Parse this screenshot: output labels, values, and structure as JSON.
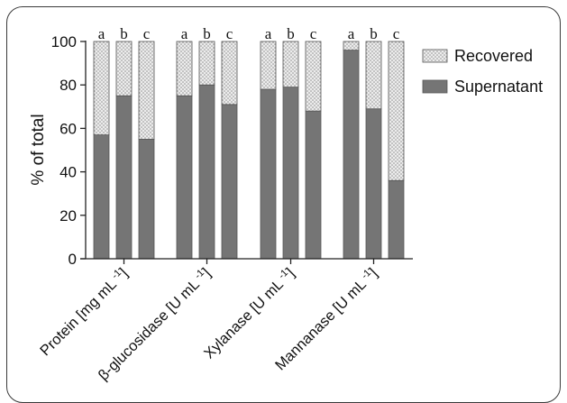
{
  "chart_data": {
    "type": "bar",
    "stacked": true,
    "categories": [
      "Protein [mg mL -1]",
      "β-glucosidase [U mL -1]",
      "Xylanase [U mL -1]",
      "Mannanase [U mL -1]"
    ],
    "category_labels": [
      {
        "main": "Protein [mg mL",
        "sup": "-1",
        "tail": "]"
      },
      {
        "main": "β-glucosidase [U mL",
        "sup": "-1",
        "tail": "]"
      },
      {
        "main": "Xylanase [U mL",
        "sup": "-1",
        "tail": "]"
      },
      {
        "main": "Mannanase [U mL",
        "sup": "-1",
        "tail": "]"
      }
    ],
    "subgroups": [
      "a",
      "b",
      "c"
    ],
    "series": [
      {
        "name": "Supernatant",
        "values": [
          [
            57,
            75,
            55
          ],
          [
            75,
            80,
            71
          ],
          [
            78,
            79,
            68
          ],
          [
            96,
            69,
            36
          ]
        ]
      },
      {
        "name": "Recovered",
        "values": [
          [
            43,
            25,
            45
          ],
          [
            25,
            20,
            29
          ],
          [
            22,
            21,
            32
          ],
          [
            4,
            31,
            64
          ]
        ]
      }
    ],
    "ylabel": "% of total",
    "ylim": [
      0,
      100
    ],
    "yticks": [
      "0",
      "20",
      "40",
      "60",
      "80",
      "100"
    ],
    "legend_placement": "top-right",
    "grid": false,
    "colors": {
      "Supernatant": "#757575",
      "Recovered": "#e6e6e6",
      "axis": "#222222",
      "bar_outline": "#555555"
    }
  }
}
